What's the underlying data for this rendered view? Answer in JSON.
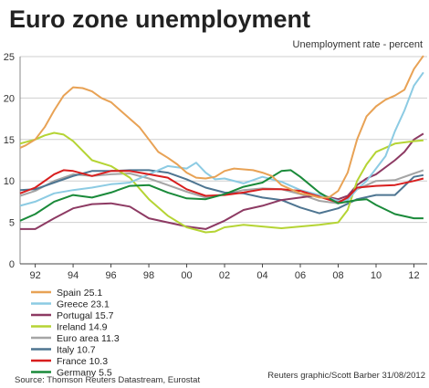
{
  "chart_data": {
    "type": "line",
    "title": "Euro zone unemployment",
    "subtitle": "Unemployment rate - percent",
    "ylim": [
      0,
      25
    ],
    "yticks": [
      0,
      5,
      10,
      15,
      20,
      25
    ],
    "xlim": [
      1991.2,
      2012.7
    ],
    "xticks": [
      1992,
      1994,
      1996,
      1998,
      2000,
      2002,
      2004,
      2006,
      2008,
      2010,
      2012
    ],
    "xtick_labels": [
      "92",
      "94",
      "96",
      "98",
      "00",
      "02",
      "04",
      "06",
      "08",
      "10",
      "12"
    ],
    "grid": "horizontal",
    "legend_position": "bottom-left",
    "series": [
      {
        "name": "Spain 25.1",
        "color": "#e8a255",
        "points": [
          [
            1991.2,
            14.0
          ],
          [
            1991.5,
            14.3
          ],
          [
            1992.0,
            15.0
          ],
          [
            1992.5,
            16.5
          ],
          [
            1993.0,
            18.5
          ],
          [
            1993.5,
            20.3
          ],
          [
            1994.0,
            21.3
          ],
          [
            1994.5,
            21.2
          ],
          [
            1995.0,
            20.8
          ],
          [
            1995.5,
            20.0
          ],
          [
            1996.0,
            19.5
          ],
          [
            1996.5,
            18.5
          ],
          [
            1997.0,
            17.5
          ],
          [
            1997.5,
            16.5
          ],
          [
            1998.0,
            15.0
          ],
          [
            1998.5,
            13.5
          ],
          [
            1999.0,
            12.8
          ],
          [
            1999.5,
            12.0
          ],
          [
            2000.0,
            11.0
          ],
          [
            2000.5,
            10.4
          ],
          [
            2001.0,
            10.3
          ],
          [
            2001.5,
            10.5
          ],
          [
            2002.0,
            11.2
          ],
          [
            2002.5,
            11.5
          ],
          [
            2003.0,
            11.4
          ],
          [
            2003.5,
            11.3
          ],
          [
            2004.0,
            11.0
          ],
          [
            2004.5,
            10.6
          ],
          [
            2005.0,
            9.5
          ],
          [
            2005.5,
            9.0
          ],
          [
            2006.0,
            8.5
          ],
          [
            2006.5,
            8.3
          ],
          [
            2007.0,
            8.0
          ],
          [
            2007.5,
            8.0
          ],
          [
            2008.0,
            8.8
          ],
          [
            2008.5,
            11.0
          ],
          [
            2009.0,
            15.0
          ],
          [
            2009.5,
            17.8
          ],
          [
            2010.0,
            19.0
          ],
          [
            2010.5,
            19.8
          ],
          [
            2011.0,
            20.3
          ],
          [
            2011.5,
            21.0
          ],
          [
            2012.0,
            23.5
          ],
          [
            2012.5,
            25.1
          ]
        ]
      },
      {
        "name": "Greece 23.1",
        "color": "#8ccbe3",
        "points": [
          [
            1991.2,
            7.0
          ],
          [
            1992.0,
            7.5
          ],
          [
            1993.0,
            8.5
          ],
          [
            1994.0,
            8.9
          ],
          [
            1995.0,
            9.2
          ],
          [
            1996.0,
            9.6
          ],
          [
            1997.0,
            9.8
          ],
          [
            1998.0,
            10.8
          ],
          [
            1999.0,
            11.8
          ],
          [
            2000.0,
            11.5
          ],
          [
            2000.5,
            12.2
          ],
          [
            2001.0,
            11.0
          ],
          [
            2001.5,
            10.2
          ],
          [
            2002.0,
            10.3
          ],
          [
            2003.0,
            9.7
          ],
          [
            2004.0,
            10.5
          ],
          [
            2005.0,
            9.9
          ],
          [
            2006.0,
            8.9
          ],
          [
            2007.0,
            8.3
          ],
          [
            2008.0,
            7.6
          ],
          [
            2008.5,
            7.7
          ],
          [
            2009.0,
            9.0
          ],
          [
            2009.5,
            10.0
          ],
          [
            2010.0,
            11.5
          ],
          [
            2010.5,
            13.0
          ],
          [
            2011.0,
            16.0
          ],
          [
            2011.5,
            18.5
          ],
          [
            2012.0,
            21.5
          ],
          [
            2012.5,
            23.1
          ]
        ]
      },
      {
        "name": "Portugal 15.7",
        "color": "#8d3a63",
        "points": [
          [
            1991.2,
            4.2
          ],
          [
            1992.0,
            4.2
          ],
          [
            1993.0,
            5.5
          ],
          [
            1994.0,
            6.7
          ],
          [
            1995.0,
            7.2
          ],
          [
            1996.0,
            7.3
          ],
          [
            1997.0,
            6.9
          ],
          [
            1998.0,
            5.5
          ],
          [
            1999.0,
            5.0
          ],
          [
            2000.0,
            4.5
          ],
          [
            2001.0,
            4.2
          ],
          [
            2002.0,
            5.2
          ],
          [
            2003.0,
            6.5
          ],
          [
            2004.0,
            7.0
          ],
          [
            2005.0,
            7.7
          ],
          [
            2006.0,
            8.0
          ],
          [
            2007.0,
            8.3
          ],
          [
            2008.0,
            7.8
          ],
          [
            2008.5,
            8.2
          ],
          [
            2009.0,
            9.5
          ],
          [
            2009.5,
            10.3
          ],
          [
            2010.0,
            10.8
          ],
          [
            2011.0,
            12.5
          ],
          [
            2011.5,
            13.5
          ],
          [
            2012.0,
            15.0
          ],
          [
            2012.5,
            15.7
          ]
        ]
      },
      {
        "name": "Ireland 14.9",
        "color": "#b5d434",
        "points": [
          [
            1991.2,
            14.5
          ],
          [
            1992.0,
            15.0
          ],
          [
            1992.5,
            15.5
          ],
          [
            1993.0,
            15.8
          ],
          [
            1993.5,
            15.6
          ],
          [
            1994.0,
            14.8
          ],
          [
            1995.0,
            12.5
          ],
          [
            1996.0,
            11.8
          ],
          [
            1997.0,
            10.4
          ],
          [
            1998.0,
            7.8
          ],
          [
            1999.0,
            5.8
          ],
          [
            2000.0,
            4.4
          ],
          [
            2001.0,
            3.8
          ],
          [
            2001.5,
            3.9
          ],
          [
            2002.0,
            4.4
          ],
          [
            2003.0,
            4.7
          ],
          [
            2004.0,
            4.5
          ],
          [
            2005.0,
            4.3
          ],
          [
            2006.0,
            4.5
          ],
          [
            2007.0,
            4.7
          ],
          [
            2008.0,
            5.0
          ],
          [
            2008.5,
            6.5
          ],
          [
            2009.0,
            10.0
          ],
          [
            2009.5,
            12.0
          ],
          [
            2010.0,
            13.5
          ],
          [
            2011.0,
            14.5
          ],
          [
            2012.0,
            14.8
          ],
          [
            2012.5,
            14.9
          ]
        ]
      },
      {
        "name": "Euro area 11.3",
        "color": "#a5a5a5",
        "points": [
          [
            1991.2,
            8.2
          ],
          [
            1992.0,
            8.8
          ],
          [
            1993.0,
            10.0
          ],
          [
            1994.0,
            10.8
          ],
          [
            1995.0,
            10.6
          ],
          [
            1996.0,
            10.8
          ],
          [
            1997.0,
            10.9
          ],
          [
            1998.0,
            10.3
          ],
          [
            1999.0,
            9.5
          ],
          [
            2000.0,
            8.7
          ],
          [
            2001.0,
            8.0
          ],
          [
            2002.0,
            8.4
          ],
          [
            2003.0,
            8.9
          ],
          [
            2004.0,
            9.1
          ],
          [
            2005.0,
            9.0
          ],
          [
            2006.0,
            8.4
          ],
          [
            2007.0,
            7.6
          ],
          [
            2008.0,
            7.3
          ],
          [
            2008.5,
            7.8
          ],
          [
            2009.0,
            9.0
          ],
          [
            2010.0,
            10.0
          ],
          [
            2011.0,
            10.1
          ],
          [
            2012.0,
            10.9
          ],
          [
            2012.5,
            11.3
          ]
        ]
      },
      {
        "name": "Italy 10.7",
        "color": "#4e7591",
        "points": [
          [
            1991.2,
            8.9
          ],
          [
            1992.0,
            9.0
          ],
          [
            1993.0,
            9.8
          ],
          [
            1994.0,
            10.6
          ],
          [
            1995.0,
            11.2
          ],
          [
            1996.0,
            11.2
          ],
          [
            1997.0,
            11.3
          ],
          [
            1998.0,
            11.3
          ],
          [
            1999.0,
            11.0
          ],
          [
            2000.0,
            10.2
          ],
          [
            2001.0,
            9.2
          ],
          [
            2002.0,
            8.6
          ],
          [
            2003.0,
            8.5
          ],
          [
            2004.0,
            8.0
          ],
          [
            2005.0,
            7.7
          ],
          [
            2006.0,
            6.8
          ],
          [
            2007.0,
            6.1
          ],
          [
            2008.0,
            6.7
          ],
          [
            2009.0,
            7.8
          ],
          [
            2010.0,
            8.3
          ],
          [
            2011.0,
            8.3
          ],
          [
            2012.0,
            10.5
          ],
          [
            2012.5,
            10.7
          ]
        ]
      },
      {
        "name": "France 10.3",
        "color": "#d81e1e",
        "points": [
          [
            1991.2,
            8.5
          ],
          [
            1992.0,
            9.2
          ],
          [
            1993.0,
            10.8
          ],
          [
            1993.5,
            11.3
          ],
          [
            1994.0,
            11.2
          ],
          [
            1995.0,
            10.6
          ],
          [
            1996.0,
            11.2
          ],
          [
            1997.0,
            11.2
          ],
          [
            1998.0,
            10.8
          ],
          [
            1999.0,
            10.4
          ],
          [
            2000.0,
            9.0
          ],
          [
            2001.0,
            8.2
          ],
          [
            2002.0,
            8.3
          ],
          [
            2003.0,
            8.6
          ],
          [
            2004.0,
            9.0
          ],
          [
            2005.0,
            9.0
          ],
          [
            2006.0,
            8.8
          ],
          [
            2007.0,
            8.1
          ],
          [
            2008.0,
            7.4
          ],
          [
            2008.5,
            8.0
          ],
          [
            2009.0,
            9.2
          ],
          [
            2010.0,
            9.4
          ],
          [
            2011.0,
            9.5
          ],
          [
            2012.0,
            10.0
          ],
          [
            2012.5,
            10.3
          ]
        ]
      },
      {
        "name": "Germany 5.5",
        "color": "#1a8a3a",
        "points": [
          [
            1991.2,
            5.2
          ],
          [
            1992.0,
            6.0
          ],
          [
            1993.0,
            7.5
          ],
          [
            1994.0,
            8.3
          ],
          [
            1995.0,
            8.0
          ],
          [
            1996.0,
            8.6
          ],
          [
            1997.0,
            9.4
          ],
          [
            1998.0,
            9.5
          ],
          [
            1999.0,
            8.6
          ],
          [
            2000.0,
            7.9
          ],
          [
            2001.0,
            7.8
          ],
          [
            2002.0,
            8.4
          ],
          [
            2003.0,
            9.3
          ],
          [
            2004.0,
            9.8
          ],
          [
            2005.0,
            11.2
          ],
          [
            2005.5,
            11.3
          ],
          [
            2006.0,
            10.5
          ],
          [
            2007.0,
            8.6
          ],
          [
            2008.0,
            7.3
          ],
          [
            2009.0,
            7.7
          ],
          [
            2009.5,
            7.8
          ],
          [
            2010.0,
            7.1
          ],
          [
            2011.0,
            6.0
          ],
          [
            2012.0,
            5.5
          ],
          [
            2012.5,
            5.5
          ]
        ]
      }
    ]
  },
  "footer": {
    "source": "Source: Thomson Reuters Datastream, Eurostat",
    "credit": "Reuters graphic/Scott Barber 31/08/2012"
  }
}
